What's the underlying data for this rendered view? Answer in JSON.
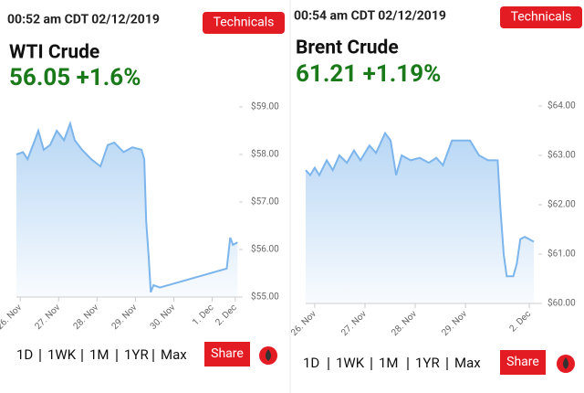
{
  "chart_data": [
    {
      "type": "line",
      "timestamp": "00:52 am CDT 02/12/2019",
      "button": "Technicals",
      "title": "WTI Crude",
      "subtitle": "56.05 +1.6%",
      "color": "#7cb5ec",
      "x": [
        25.9,
        26.07,
        26.19,
        26.38,
        26.47,
        26.61,
        26.78,
        26.95,
        27.14,
        27.3,
        27.42,
        27.61,
        27.85,
        28.09,
        28.28,
        28.45,
        28.69,
        28.92,
        29.16,
        29.23,
        29.28,
        29.35,
        29.4,
        29.47,
        29.64,
        31.38,
        31.47,
        31.54,
        31.66
      ],
      "values": [
        58.0,
        58.05,
        57.9,
        58.3,
        58.5,
        58.1,
        58.2,
        58.5,
        58.3,
        58.65,
        58.3,
        58.1,
        57.9,
        57.75,
        58.2,
        58.25,
        58.05,
        58.15,
        58.1,
        57.9,
        56.6,
        55.8,
        55.1,
        55.25,
        55.2,
        55.6,
        56.25,
        56.1,
        56.15
      ],
      "xlim": [
        25.9,
        31.7
      ],
      "xticks": [
        {
          "value": 26,
          "label": "26. Nov"
        },
        {
          "value": 27,
          "label": "27. Nov"
        },
        {
          "value": 28,
          "label": "28. Nov"
        },
        {
          "value": 29,
          "label": "29. Nov"
        },
        {
          "value": 30,
          "label": "30. Nov"
        },
        {
          "value": 31,
          "label": "1. Dec"
        },
        {
          "value": 31.6,
          "label": "2. Dec"
        }
      ],
      "ylim": [
        55,
        59
      ],
      "yticks": [
        {
          "value": 55,
          "label": "$55.00"
        },
        {
          "value": 56,
          "label": "$56.00"
        },
        {
          "value": 57,
          "label": "$57.00"
        },
        {
          "value": 58,
          "label": "$58.00"
        },
        {
          "value": 59,
          "label": "$59.00"
        }
      ],
      "range_options": [
        "1D",
        "1WK",
        "1M",
        "1YR",
        "Max"
      ],
      "selected_range": 1,
      "share": "Share"
    },
    {
      "type": "line",
      "timestamp": "00:54 am CDT 02/12/2019",
      "button": "Technicals",
      "title": "Brent Crude",
      "subtitle": "61.21 +1.19%",
      "color": "#7cb5ec",
      "x": [
        25.82,
        25.91,
        26.0,
        26.09,
        26.24,
        26.36,
        26.49,
        26.64,
        26.78,
        26.91,
        27.09,
        27.22,
        27.4,
        27.51,
        27.62,
        27.73,
        27.91,
        28.09,
        28.27,
        28.42,
        28.55,
        28.73,
        29.09,
        29.27,
        29.45,
        29.64,
        29.69,
        29.76,
        29.82,
        29.95,
        30.02,
        30.09,
        30.18,
        30.36
      ],
      "values": [
        62.7,
        62.6,
        62.75,
        62.6,
        62.9,
        62.7,
        63.0,
        62.85,
        63.1,
        62.9,
        63.2,
        63.05,
        63.45,
        63.3,
        62.6,
        63.0,
        62.9,
        62.95,
        62.85,
        62.95,
        62.8,
        63.3,
        63.3,
        63.0,
        62.9,
        62.9,
        62.0,
        61.0,
        60.55,
        60.55,
        60.8,
        61.3,
        61.35,
        61.25
      ],
      "xlim": [
        25.82,
        30.45
      ],
      "xticks": [
        {
          "value": 26,
          "label": "26. Nov"
        },
        {
          "value": 27,
          "label": "27. Nov"
        },
        {
          "value": 28,
          "label": "28. Nov"
        },
        {
          "value": 29,
          "label": "29. Nov"
        },
        {
          "value": 30.27,
          "label": "2. Dec"
        }
      ],
      "ylim": [
        60,
        64
      ],
      "yticks": [
        {
          "value": 60,
          "label": "$60.00"
        },
        {
          "value": 61,
          "label": "$61.00"
        },
        {
          "value": 62,
          "label": "$62.00"
        },
        {
          "value": 63,
          "label": "$63.00"
        },
        {
          "value": 64,
          "label": "$64.00"
        }
      ],
      "range_options": [
        "1D",
        "1WK",
        "1M",
        "1YR",
        "Max"
      ],
      "selected_range": 1,
      "share": "Share"
    }
  ]
}
